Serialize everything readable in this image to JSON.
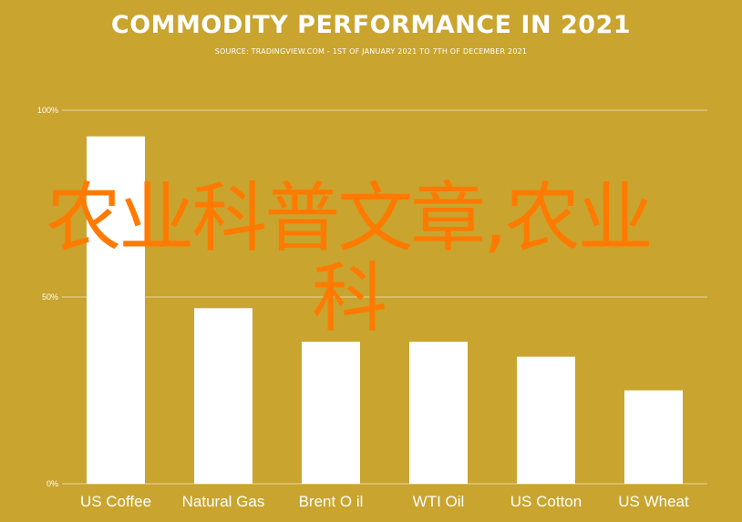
{
  "chart_data": {
    "type": "bar",
    "title": "COMMODITY PERFORMANCE IN 2021",
    "subtitle": "SOURCE: TRADINGVIEW.COM - 1ST OF JANUARY 2021 TO 7TH OF DECEMBER 2021",
    "categories": [
      "US Coffee",
      "Natural Gas",
      "Brent O il",
      "WTI Oil",
      "US Cotton",
      "US Wheat"
    ],
    "values": [
      93,
      47,
      38,
      38,
      34,
      25
    ],
    "y_unit": "%",
    "ylim": [
      0,
      100
    ],
    "yticks": [
      0,
      50,
      100
    ],
    "ytick_labels": [
      "0%",
      "50%",
      "100%"
    ],
    "grid": true,
    "legend": "none",
    "xlabel": "",
    "ylabel": ""
  },
  "overlay_text": "农业科普文章,农业科",
  "colors": {
    "background": "#c9a42f",
    "bars": "#ffffff",
    "gridlines": "#ffffff",
    "text": "#ffffff",
    "overlay": "#ff7a00"
  }
}
